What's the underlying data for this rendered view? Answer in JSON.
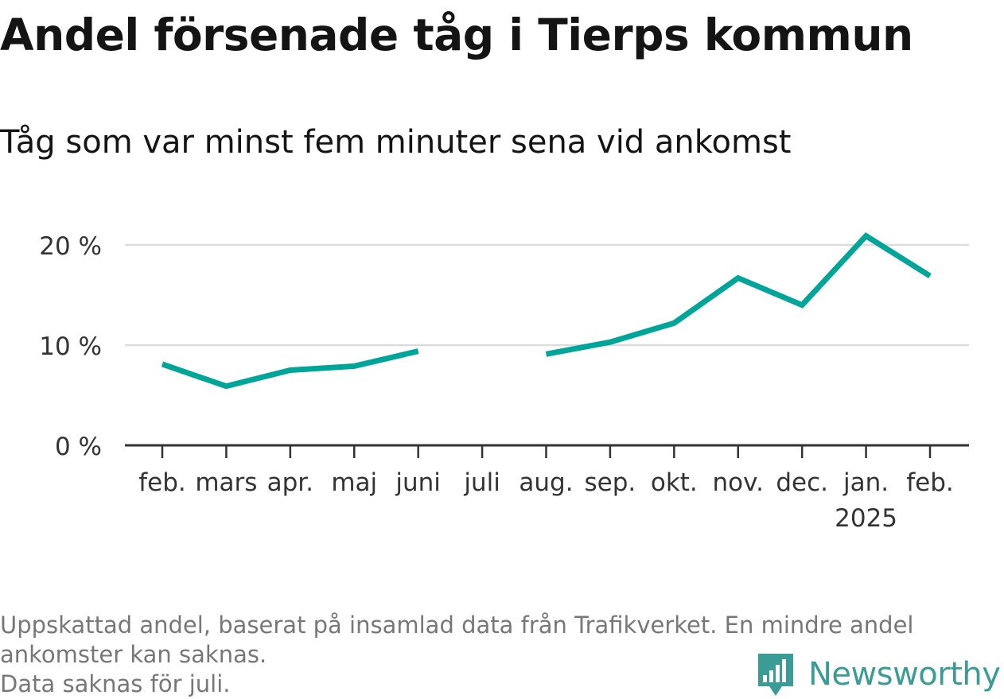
{
  "title": "Andel försenade tåg i Tierps kommun",
  "subtitle": "Tåg som var minst fem minuter sena vid ankomst",
  "footnote": {
    "line1": "Uppskattad andel, baserat på insamlad data från Trafikverket. En mindre andel",
    "line2": "ankomster kan saknas.",
    "line3": "Data saknas för juli."
  },
  "brand": {
    "name": "Newsworthy",
    "icon": "bar-chart-badge-icon",
    "color": "#3a9c94"
  },
  "chart_data": {
    "type": "line",
    "categories": [
      "feb.",
      "mars",
      "apr.",
      "maj",
      "juni",
      "juli",
      "aug.",
      "sep.",
      "okt.",
      "nov.",
      "dec.",
      "jan.",
      "feb."
    ],
    "category_sublabels": [
      "",
      "",
      "",
      "",
      "",
      "",
      "",
      "",
      "",
      "",
      "",
      "2025",
      ""
    ],
    "series": [
      {
        "values": [
          8.1,
          5.9,
          7.5,
          7.9,
          9.4,
          null,
          9.1,
          10.3,
          12.2,
          16.7,
          14.0,
          20.9,
          16.9
        ],
        "color": "#00a59a"
      }
    ],
    "y_ticks": [
      0,
      10,
      20
    ],
    "y_tick_labels": [
      "0 %",
      "10 %",
      "20 %"
    ],
    "ylim": [
      0,
      20
    ],
    "xlabel": "",
    "ylabel": "",
    "grid": true,
    "legend": "none",
    "missing": [
      "juli"
    ]
  }
}
